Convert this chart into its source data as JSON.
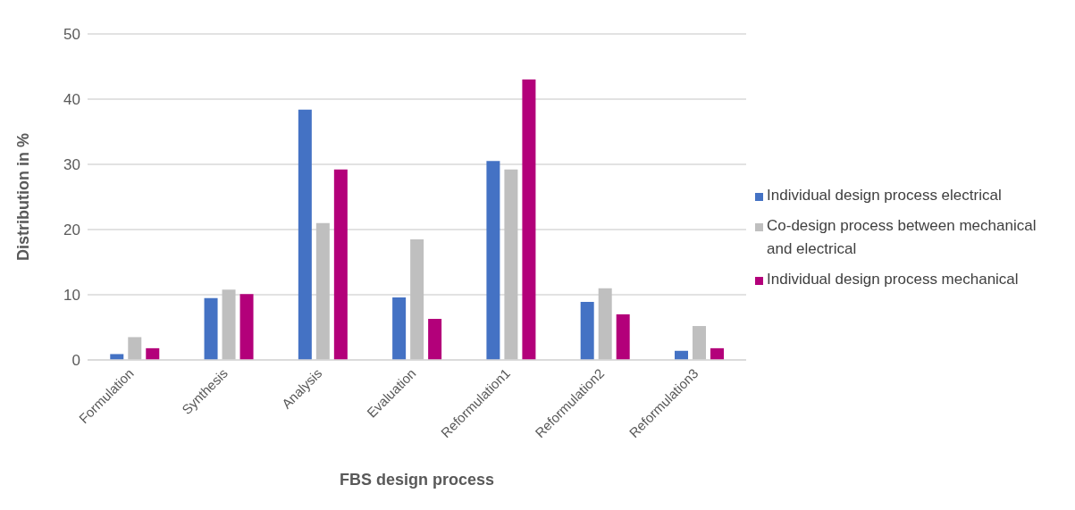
{
  "chart_data": {
    "type": "bar",
    "xlabel": "FBS design process",
    "ylabel": "Distribution in %",
    "categories": [
      "Formulation",
      "Synthesis",
      "Analysis",
      "Evaluation",
      "Reformulation1",
      "Reformulation2",
      "Reformulation3"
    ],
    "series": [
      {
        "name": "Individual design process electrical",
        "color": "#4472c4",
        "values": [
          0.9,
          9.5,
          38.4,
          9.6,
          30.5,
          8.9,
          1.4
        ]
      },
      {
        "name": "Co-design process between mechanical and electrical",
        "color": "#bfbfbf",
        "values": [
          3.5,
          10.8,
          21.0,
          18.5,
          29.2,
          11.0,
          5.2
        ]
      },
      {
        "name": "Individual design process mechanical",
        "color": "#b3007a",
        "values": [
          1.8,
          10.1,
          29.2,
          6.3,
          43.0,
          7.0,
          1.8
        ]
      }
    ],
    "ylim": [
      0,
      50
    ],
    "yticks": [
      0,
      10,
      20,
      30,
      40,
      50
    ],
    "grid": "y",
    "legend": "right"
  }
}
